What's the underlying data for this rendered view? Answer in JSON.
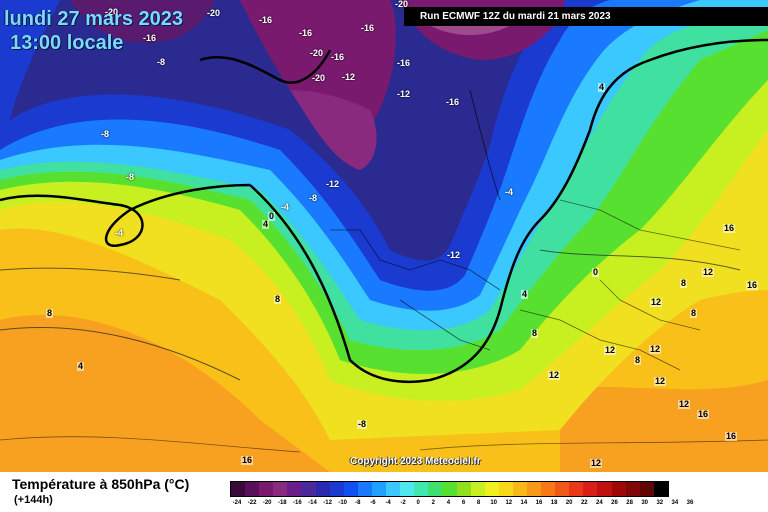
{
  "map": {
    "date_label": "lundi 27 mars 2023",
    "time_label": "13:00 locale",
    "run_label": "Run ECMWF 12Z du mardi 21 mars 2023",
    "copyright": "Copyright 2023 Meteociel.fr",
    "contour_labels": [
      "-20",
      "-16",
      "-20",
      "-16",
      "-16",
      "-20",
      "-8",
      "-16",
      "-20",
      "-16",
      "-20",
      "-12",
      "-16",
      "-12",
      "-16",
      "-8",
      "-8",
      "-12",
      "-4",
      "-8",
      "-4",
      "0",
      "4",
      "-4",
      "-12",
      "8",
      "8",
      "4",
      "0",
      "4",
      "16",
      "12",
      "16",
      "8",
      "12",
      "12",
      "8",
      "4",
      "12",
      "8",
      "12",
      "8",
      "12",
      "16",
      "16",
      "12",
      "-8",
      "16",
      "12"
    ]
  },
  "legend": {
    "title": "Température à 850hPa (°C)",
    "subtitle": "(+144h)",
    "ticks": [
      "-24",
      "-22",
      "-20",
      "-18",
      "-16",
      "-14",
      "-12",
      "-10",
      "-8",
      "-6",
      "-4",
      "-2",
      "0",
      "2",
      "4",
      "6",
      "8",
      "10",
      "12",
      "14",
      "16",
      "18",
      "20",
      "22",
      "24",
      "26",
      "28",
      "30",
      "32",
      "34",
      "36"
    ],
    "colors": [
      "#3a0a3a",
      "#5a0f5a",
      "#7a1a6e",
      "#8a2a7e",
      "#6a1e8a",
      "#4a2a9a",
      "#2a2ab0",
      "#1a3ad0",
      "#1050f0",
      "#1a7aff",
      "#20a0ff",
      "#3ac8ff",
      "#50e8f0",
      "#40e8b0",
      "#40e070",
      "#58e030",
      "#90e020",
      "#c8f020",
      "#f0f020",
      "#f8d818",
      "#f8b818",
      "#f89818",
      "#f87818",
      "#f05818",
      "#e83818",
      "#d82018",
      "#c01010",
      "#a00808",
      "#800808",
      "#600404",
      "#000000"
    ]
  }
}
